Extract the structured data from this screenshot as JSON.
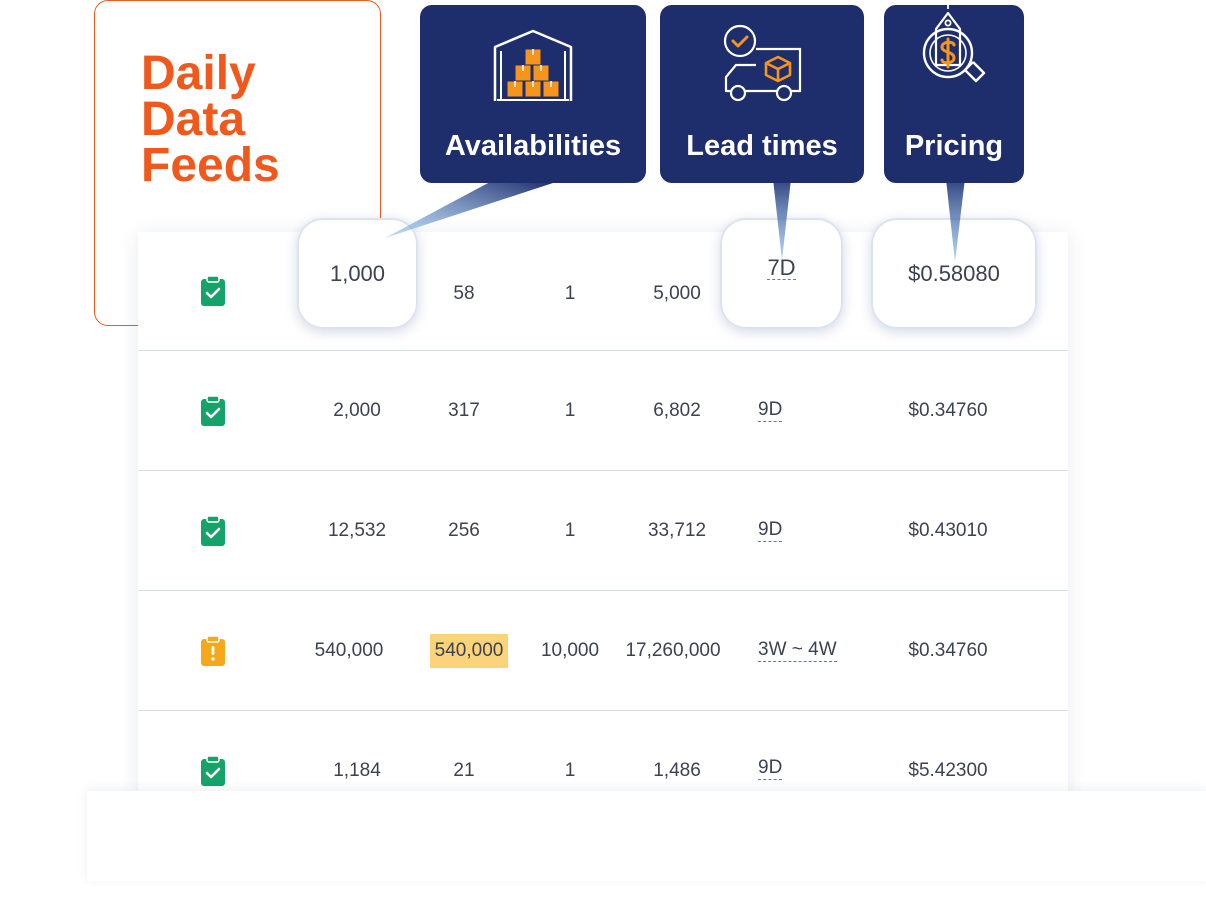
{
  "title": {
    "text": "Daily\nData\nFeeds"
  },
  "callouts": [
    {
      "label": "Availabilities",
      "icon": "warehouse-boxes-icon"
    },
    {
      "label": "Lead times",
      "icon": "delivery-truck-icon"
    },
    {
      "label": "Pricing",
      "icon": "price-tag-magnifier-icon"
    }
  ],
  "rows": [
    {
      "status": "ok",
      "icon": "clipboard-check-icon",
      "c1": "1,000",
      "c2": "58",
      "c3": "1",
      "c4": "5,000",
      "c5": "7D",
      "c6": "$0.58080"
    },
    {
      "status": "ok",
      "icon": "clipboard-check-icon",
      "c1": "2,000",
      "c2": "317",
      "c3": "1",
      "c4": "6,802",
      "c5": "9D",
      "c6": "$0.34760"
    },
    {
      "status": "ok",
      "icon": "clipboard-check-icon",
      "c1": "12,532",
      "c2": "256",
      "c3": "1",
      "c4": "33,712",
      "c5": "9D",
      "c6": "$0.43010"
    },
    {
      "status": "warning",
      "icon": "clipboard-warning-icon",
      "c1": "540,000",
      "c2": "540,000",
      "c3": "10,000",
      "c4": "17,260,000",
      "c5": "3W ~ 4W",
      "c6": "$0.34760"
    },
    {
      "status": "ok",
      "icon": "clipboard-check-icon",
      "c1": "1,184",
      "c2": "21",
      "c3": "1",
      "c4": "1,486",
      "c5": "9D",
      "c6": "$5.42300"
    }
  ],
  "colors": {
    "accent": "#f0581c",
    "navy": "#1e2d6b",
    "ok": "#16a36a",
    "warning": "#f5a819",
    "highlight": "#fbd37a"
  }
}
